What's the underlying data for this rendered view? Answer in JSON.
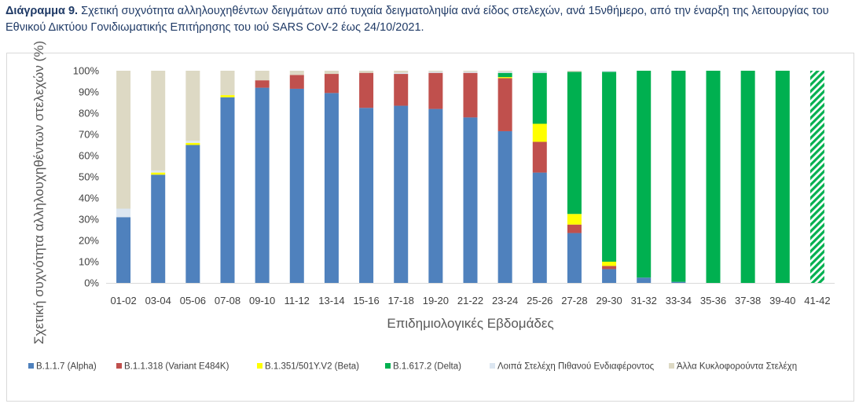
{
  "caption": {
    "label": "Διάγραμμα 9.",
    "text": "Σχετική συχνότητα αλληλουχηθέντων δειγμάτων από τυχαία δειγματοληψία ανά είδος στελεχών, ανά 15νθήμερο, από την έναρξη της λειτουργίας του Εθνικού Δικτύου Γονιδιωματικής Επιτήρησης του ιού SARS CoV-2 έως 24/10/2021."
  },
  "chart_data": {
    "type": "bar",
    "stacked": true,
    "xlabel": "Επιδημιολογικές Εβδομάδες",
    "ylabel": "Σχετική συχνότητα αλληλουχηθέντων στελεχών (%)",
    "ylim": [
      0,
      100
    ],
    "yticks": [
      "0%",
      "10%",
      "20%",
      "30%",
      "40%",
      "50%",
      "60%",
      "70%",
      "80%",
      "90%",
      "100%"
    ],
    "grid": false,
    "legend_position": "bottom",
    "categories": [
      "01-02",
      "03-04",
      "05-06",
      "07-08",
      "09-10",
      "11-12",
      "13-14",
      "15-16",
      "17-18",
      "19-20",
      "21-22",
      "23-24",
      "25-26",
      "27-28",
      "29-30",
      "31-32",
      "33-34",
      "35-36",
      "37-38",
      "39-40",
      "41-42"
    ],
    "hatched_categories": [
      "41-42"
    ],
    "series": [
      {
        "name": "B.1.1.7 (Alpha)",
        "color": "#4f81bd",
        "values": [
          31,
          51,
          65,
          87.5,
          92,
          91.5,
          89.5,
          82.5,
          83.5,
          82,
          78,
          71.5,
          52,
          23.5,
          6.5,
          2.5,
          0.5,
          0,
          0,
          0,
          0
        ]
      },
      {
        "name": "B.1.1.318 (Variant E484K)",
        "color": "#c0504d",
        "values": [
          0,
          0,
          0,
          0,
          3.5,
          6.5,
          9,
          16.5,
          15,
          17,
          21,
          25,
          14.5,
          4,
          1.5,
          0,
          0,
          0,
          0,
          0,
          0
        ]
      },
      {
        "name": "B.1.351/501Y.V2 (Beta)",
        "color": "#ffff00",
        "values": [
          0,
          1,
          1,
          1,
          0,
          0,
          0,
          0,
          0,
          0,
          0,
          0.5,
          8.5,
          5,
          2,
          0,
          0,
          0,
          0,
          0,
          0
        ]
      },
      {
        "name": "B.1.617.2 (Delta)",
        "color": "#00b050",
        "values": [
          0,
          0,
          0,
          0,
          0,
          0,
          0,
          0,
          0,
          0,
          0,
          2,
          24,
          67,
          89.5,
          97.5,
          99.5,
          100,
          100,
          100,
          100
        ]
      },
      {
        "name": "Λοιπά Στελέχη Πιθανού Ενδιαφέροντος",
        "color": "#dce6f1",
        "values": [
          4,
          1,
          1,
          0,
          0,
          0,
          0,
          0,
          0.5,
          0.5,
          0.5,
          0.5,
          1,
          0,
          0.5,
          0,
          0,
          0,
          0,
          0,
          0
        ]
      },
      {
        "name": "Άλλα Κυκλοφορούντα Στελέχη",
        "color": "#ddd9c4",
        "values": [
          65,
          47,
          33,
          11.5,
          4.5,
          2,
          1.5,
          1,
          1,
          0.5,
          0.5,
          0.5,
          0,
          0.5,
          0,
          0,
          0,
          0,
          0,
          0,
          0
        ]
      }
    ]
  }
}
